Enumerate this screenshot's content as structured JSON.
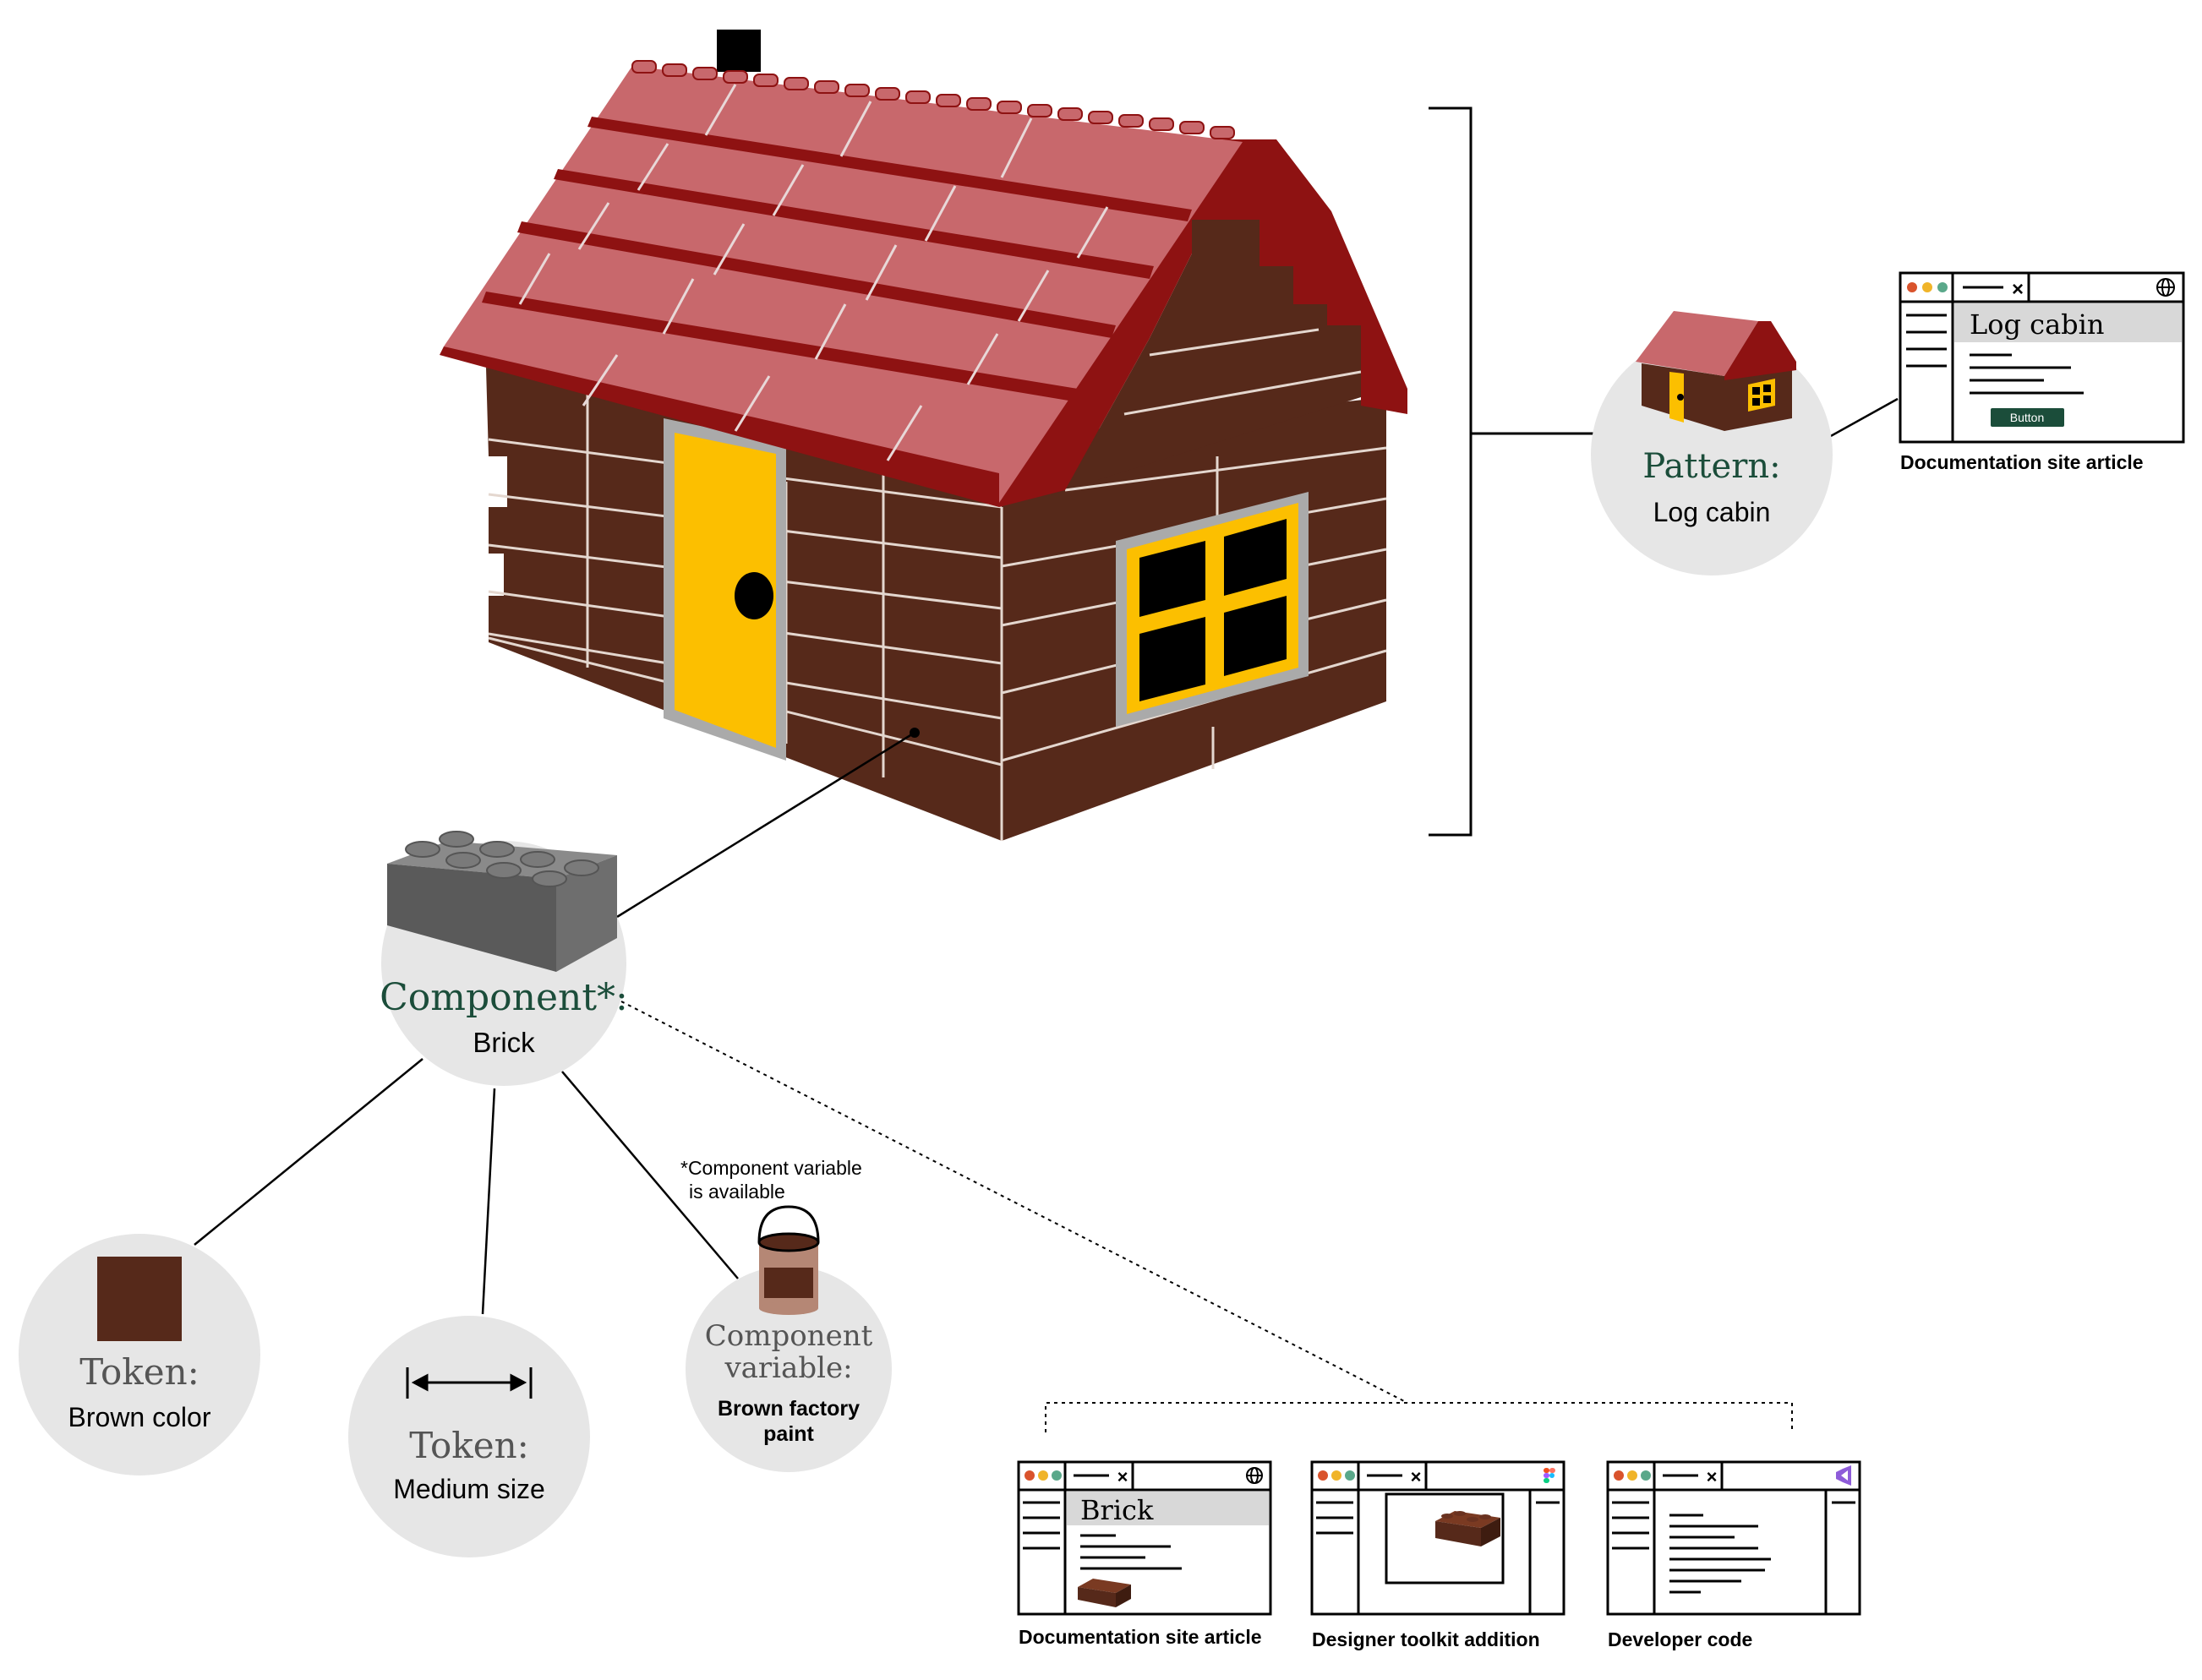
{
  "pattern": {
    "heading": "Pattern:",
    "name": "Log cabin",
    "doc_window_title": "Log cabin",
    "doc_button_label": "Button",
    "doc_caption": "Documentation site article"
  },
  "component": {
    "heading": "Component*:",
    "name": "Brick",
    "variable_note_line1": "*Component variable",
    "variable_note_line2": "is available"
  },
  "tokens": [
    {
      "heading": "Token:",
      "name": "Brown color",
      "swatch_color": "#56291a"
    },
    {
      "heading": "Token:",
      "name": "Medium size"
    }
  ],
  "component_variable": {
    "heading_line1": "Component",
    "heading_line2": "variable:",
    "name_line1": "Brown factory",
    "name_line2": "paint"
  },
  "outputs": [
    {
      "window_title": "Brick",
      "caption": "Documentation site article",
      "corner_icon": "globe-icon"
    },
    {
      "window_title": "",
      "caption": "Designer toolkit addition",
      "corner_icon": "figma-icon"
    },
    {
      "window_title": "",
      "caption": "Developer code",
      "corner_icon": "visual-studio-icon"
    }
  ],
  "colors": {
    "brick_brown": "#56291a",
    "roof_red": "#c8686c",
    "roof_dark_red": "#8e1212",
    "door_yellow": "#fcbf00",
    "label_green": "#1b4d3a",
    "circle_gray": "#e6e6e6",
    "gray_brick": "#5a5a5a",
    "button_green": "#1b4d3a"
  }
}
